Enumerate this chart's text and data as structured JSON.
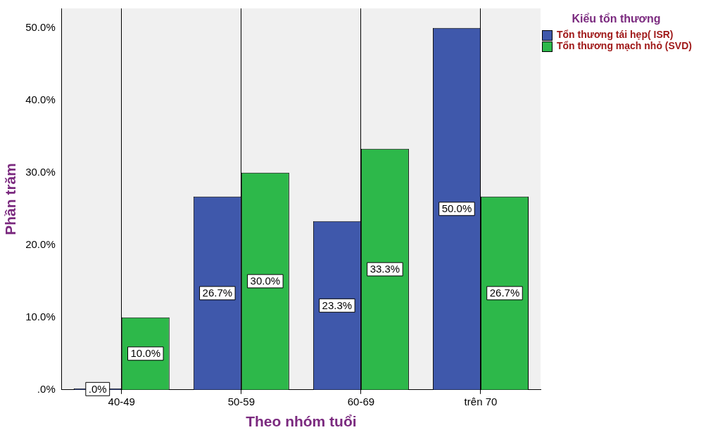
{
  "chart_data": {
    "type": "bar",
    "xlabel": "Theo nhóm tuổi",
    "ylabel": "Phần trăm",
    "legend_title": "Kiểu tổn thương",
    "categories": [
      "40-49",
      "50-59",
      "60-69",
      "trên 70"
    ],
    "series": [
      {
        "name": "Tổn thương tái hẹp( ISR)",
        "color": "#3f58ab",
        "values": [
          0,
          26.7,
          23.3,
          50.0
        ],
        "value_labels": [
          ".0%",
          "26.7%",
          "23.3%",
          "50.0%"
        ]
      },
      {
        "name": "Tổn thương mạch nhỏ (SVD)",
        "color": "#2db84a",
        "values": [
          10.0,
          30.0,
          33.3,
          26.7
        ],
        "value_labels": [
          "10.0%",
          "30.0%",
          "33.3%",
          "26.7%"
        ]
      }
    ],
    "ylim": [
      0,
      52.7
    ],
    "yticks": [
      {
        "value": 0,
        "label": ".0%"
      },
      {
        "value": 10,
        "label": "10.0%"
      },
      {
        "value": 20,
        "label": "20.0%"
      },
      {
        "value": 30,
        "label": "30.0%"
      },
      {
        "value": 40,
        "label": "40.0%"
      },
      {
        "value": 50,
        "label": "50.0%"
      }
    ],
    "grid": "x",
    "legend": "top right"
  }
}
